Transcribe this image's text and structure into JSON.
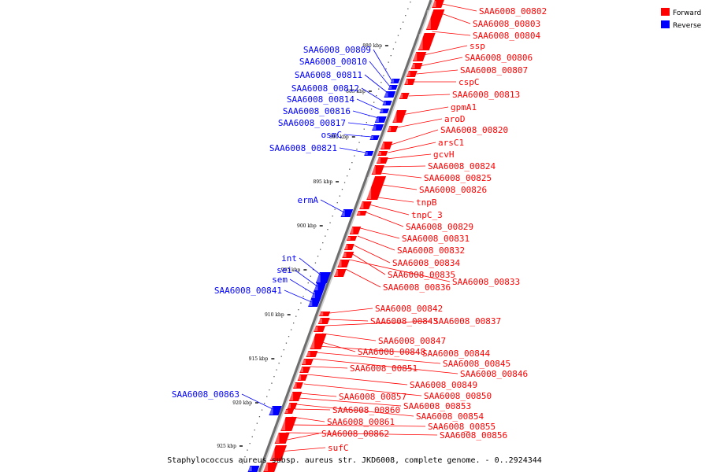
{
  "caption": "Staphylococcus aureus subsp. aureus str. JKD6008, complete genome. - 0..2924344",
  "legend": [
    {
      "label": "Forward",
      "color": "#ff0000"
    },
    {
      "label": "Reverse",
      "color": "#0000ff"
    }
  ],
  "ticks": [
    "880 kbp",
    "885 kbp",
    "890 kbp",
    "895 kbp",
    "900 kbp",
    "905 kbp",
    "910 kbp",
    "915 kbp",
    "920 kbp",
    "925 kbp"
  ],
  "forward_genes": [
    "SAA6008_00802",
    "SAA6008_00803",
    "SAA6008_00804",
    "ssp",
    "SAA6008_00806",
    "SAA6008_00807",
    "cspC",
    "SAA6008_00813",
    "gpmA1",
    "aroD",
    "SAA6008_00820",
    "arsC1",
    "gcvH",
    "SAA6008_00824",
    "SAA6008_00825",
    "SAA6008_00826",
    "tnpB",
    "tnpC_3",
    "SAA6008_00829",
    "SAA6008_00831",
    "SAA6008_00832",
    "SAA6008_00834",
    "SAA6008_00835",
    "SAA6008_00833",
    "SAA6008_00836",
    "SAA6008_00842",
    "SAA6008_00843",
    "SAA6008_00837",
    "SAA6008_00847",
    "SAA6008_00848",
    "SAA6008_00844",
    "SAA6008_00845",
    "SAA6008_00846",
    "SAA6008_00851",
    "SAA6008_00849",
    "SAA6008_00850",
    "SAA6008_00857",
    "SAA6008_00853",
    "SAA6008_00854",
    "SAA6008_00860",
    "SAA6008_00861",
    "SAA6008_00855",
    "SAA6008_00856",
    "SAA6008_00862",
    "sufC"
  ],
  "reverse_genes": [
    "SAA6008_00809",
    "SAA6008_00810",
    "SAA6008_00811",
    "SAA6008_00812",
    "SAA6008_00814",
    "SAA6008_00816",
    "SAA6008_00817",
    "osmC",
    "SAA6008_00821",
    "ermA",
    "int",
    "sei",
    "sem",
    "SAA6008_00841",
    "SAA6008_00863"
  ]
}
